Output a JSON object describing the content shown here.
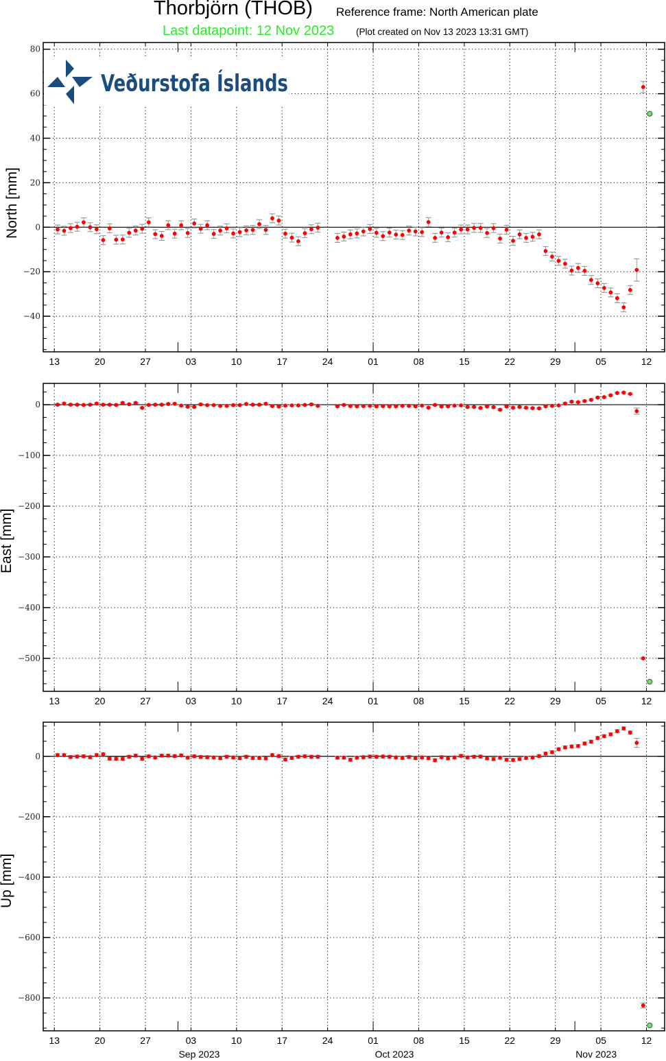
{
  "header": {
    "title": "Thorbjörn (THOB)",
    "reference_frame": "Reference frame: North American plate",
    "last_datapoint": "Last datapoint: 12 Nov 2023",
    "plot_created": "(Plot created on Nov 13 2023 13:31 GMT)"
  },
  "logo": {
    "text": "Veðurstofa Íslands",
    "color": "#1b4c7f"
  },
  "colors": {
    "point": "#ff0000",
    "errorbar": "#9a9a9a",
    "last_point": "#7dd87d",
    "last_point_edge": "#2a6a2a",
    "latest_label": "#22f022"
  },
  "chart_data": [
    {
      "type": "scatter",
      "panel": "north",
      "ylabel": "North [mm]",
      "ylim": [
        -56,
        83
      ],
      "yticks": [
        -40,
        -20,
        0,
        20,
        40,
        60,
        80
      ],
      "ytick_labels": [
        "−40",
        "−20",
        "0",
        "20",
        "40",
        "60",
        "80"
      ],
      "minor_ytick_step": 5,
      "grid": true,
      "values": [
        -1.0,
        -1.6,
        -0.4,
        0.2,
        2.2,
        0.0,
        -0.9,
        -5.8,
        -0.5,
        -5.6,
        -5.5,
        -2.5,
        -1.5,
        -0.7,
        2.2,
        -3.1,
        -3.9,
        0.9,
        -2.9,
        0.9,
        -2.6,
        1.7,
        -0.7,
        0.9,
        -3.0,
        -1.5,
        -0.5,
        -2.8,
        -2.2,
        -1.4,
        -1.2,
        1.4,
        -1.2,
        4.0,
        3.0,
        -2.9,
        -4.7,
        -6.3,
        -2.7,
        -0.9,
        -0.2,
        null,
        null,
        -4.8,
        -4.2,
        -3.2,
        -2.8,
        -1.9,
        -0.8,
        -2.5,
        -4.0,
        -2.4,
        -3.3,
        -3.5,
        -1.5,
        -1.9,
        -2.2,
        2.3,
        -4.8,
        -2.4,
        -4.5,
        -2.4,
        -1.0,
        -1.0,
        -0.3,
        -0.3,
        -2.6,
        -0.4,
        -5.1,
        -1.1,
        -6.1,
        -3.2,
        -4.8,
        -4.3,
        -3.2,
        -10.7,
        -13.2,
        -15.1,
        -16.4,
        -19.5,
        -18.3,
        -19.6,
        -23.7,
        -25.2,
        -27.3,
        -29.3,
        -31.9,
        -36.0,
        -28.2,
        -19.2,
        63.0
      ],
      "error_default": 2,
      "error_overrides": {
        "2023-11-10": 5,
        "2023-11-11": 2.5
      },
      "last_point": {
        "date": "2023-11-12",
        "value": 51
      }
    },
    {
      "type": "scatter",
      "panel": "east",
      "ylabel": "East [mm]",
      "ylim": [
        -565,
        42
      ],
      "yticks": [
        -500,
        -400,
        -300,
        -200,
        -100,
        0
      ],
      "ytick_labels": [
        "−500",
        "−400",
        "−300",
        "−200",
        "−100",
        "0"
      ],
      "minor_ytick_step": 25,
      "grid": true,
      "values": [
        0.0,
        2.3,
        0.0,
        0.0,
        -0.5,
        0.0,
        2.3,
        0.0,
        0.0,
        -0.5,
        3.6,
        0.9,
        3.6,
        -6.3,
        -0.5,
        0.0,
        0.0,
        1.4,
        1.8,
        -1.8,
        -4.1,
        -4.5,
        0.5,
        -0.9,
        -0.9,
        -2.3,
        -2.3,
        -0.9,
        -0.9,
        1.4,
        0.0,
        0.0,
        1.8,
        -2.7,
        -3.6,
        -1.8,
        -1.4,
        -1.4,
        -0.5,
        0.5,
        -2.3,
        null,
        null,
        -3.2,
        -0.5,
        -2.7,
        -3.2,
        -2.7,
        -2.3,
        -3.2,
        -2.7,
        -3.2,
        -3.2,
        -2.3,
        -2.3,
        -3.2,
        -1.8,
        -5.9,
        -0.5,
        -3.6,
        -3.2,
        -1.8,
        -1.4,
        -4.5,
        -4.5,
        -6.3,
        -3.6,
        -5.0,
        -9.9,
        -3.6,
        -5.9,
        -4.5,
        -5.9,
        -6.8,
        -7.2,
        -3.2,
        -2.3,
        -1.4,
        2.3,
        5.9,
        5.0,
        7.2,
        9.5,
        14.0,
        14.9,
        18.5,
        23.0,
        23.9,
        21.2,
        -12.6,
        -500
      ],
      "error_default": 1.5,
      "error_overrides": {
        "2023-11-10": 6,
        "2023-11-11": 2
      },
      "last_point": {
        "date": "2023-11-12",
        "value": -546
      }
    },
    {
      "type": "scatter",
      "panel": "up",
      "ylabel": "Up [mm]",
      "ylim": [
        -909,
        113
      ],
      "yticks": [
        -800,
        -600,
        -400,
        -200,
        0
      ],
      "ytick_labels": [
        "−800",
        "−600",
        "−400",
        "−200",
        "0"
      ],
      "minor_ytick_step": 50,
      "grid": true,
      "values": [
        3.8,
        3.8,
        -2.3,
        -0.8,
        0.0,
        -3.0,
        3.8,
        6.8,
        -7.6,
        -8.3,
        -8.3,
        -1.5,
        2.3,
        -8.3,
        0.0,
        -3.8,
        2.3,
        2.3,
        0.8,
        3.0,
        -4.5,
        0.0,
        -2.3,
        -3.0,
        -3.8,
        -6.1,
        -1.5,
        -3.8,
        -6.1,
        -1.5,
        -5.3,
        -5.3,
        -6.8,
        3.8,
        0.8,
        -10.6,
        -5.3,
        -1.5,
        0.0,
        -1.5,
        -1.5,
        null,
        null,
        -4.5,
        -4.5,
        -11.4,
        -4.5,
        -3.0,
        -0.8,
        -1.5,
        -0.8,
        -1.5,
        -3.8,
        -5.3,
        -2.3,
        -6.1,
        -3.8,
        -6.1,
        -12.9,
        -3.0,
        -6.8,
        -3.8,
        1.5,
        -3.8,
        -1.5,
        -0.8,
        -6.8,
        -9.1,
        -4.5,
        -11.4,
        -12.1,
        -9.1,
        -5.3,
        -3.8,
        0.8,
        9.1,
        13.6,
        23.5,
        29.5,
        32.6,
        34.1,
        42.4,
        48.5,
        60.6,
        66.7,
        72.7,
        83.3,
        92.4,
        78.8,
        44.7,
        -825
      ],
      "error_default": 5,
      "error_overrides": {
        "2023-11-10": 15,
        "2023-11-11": 8
      },
      "last_point": {
        "date": "2023-11-12",
        "value": -891
      }
    }
  ],
  "x_axis": {
    "xlim": [
      "2023-08-11T07:00",
      "2023-11-14T19:00"
    ],
    "dates": [
      "2023-08-13",
      "2023-08-14",
      "2023-08-15",
      "2023-08-16",
      "2023-08-17",
      "2023-08-18",
      "2023-08-19",
      "2023-08-20",
      "2023-08-21",
      "2023-08-22",
      "2023-08-23",
      "2023-08-24",
      "2023-08-25",
      "2023-08-26",
      "2023-08-27",
      "2023-08-28",
      "2023-08-29",
      "2023-08-30",
      "2023-08-31",
      "2023-09-01",
      "2023-09-02",
      "2023-09-03",
      "2023-09-04",
      "2023-09-05",
      "2023-09-06",
      "2023-09-07",
      "2023-09-08",
      "2023-09-09",
      "2023-09-10",
      "2023-09-11",
      "2023-09-12",
      "2023-09-13",
      "2023-09-14",
      "2023-09-15",
      "2023-09-16",
      "2023-09-17",
      "2023-09-18",
      "2023-09-19",
      "2023-09-20",
      "2023-09-21",
      "2023-09-22",
      "2023-09-23",
      "2023-09-24",
      "2023-09-25",
      "2023-09-26",
      "2023-09-27",
      "2023-09-28",
      "2023-09-29",
      "2023-09-30",
      "2023-10-01",
      "2023-10-02",
      "2023-10-03",
      "2023-10-04",
      "2023-10-05",
      "2023-10-06",
      "2023-10-07",
      "2023-10-08",
      "2023-10-09",
      "2023-10-10",
      "2023-10-11",
      "2023-10-12",
      "2023-10-13",
      "2023-10-14",
      "2023-10-15",
      "2023-10-16",
      "2023-10-17",
      "2023-10-18",
      "2023-10-19",
      "2023-10-20",
      "2023-10-21",
      "2023-10-22",
      "2023-10-23",
      "2023-10-24",
      "2023-10-25",
      "2023-10-26",
      "2023-10-27",
      "2023-10-28",
      "2023-10-29",
      "2023-10-30",
      "2023-10-31",
      "2023-11-01",
      "2023-11-02",
      "2023-11-03",
      "2023-11-04",
      "2023-11-05",
      "2023-11-06",
      "2023-11-07",
      "2023-11-08",
      "2023-11-09",
      "2023-11-10",
      "2023-11-11"
    ],
    "tick_dates": [
      "2023-08-13",
      "2023-08-20",
      "2023-08-27",
      "2023-09-03",
      "2023-09-10",
      "2023-09-17",
      "2023-09-24",
      "2023-10-01",
      "2023-10-08",
      "2023-10-15",
      "2023-10-22",
      "2023-10-29",
      "2023-11-05",
      "2023-11-12"
    ],
    "tick_labels": [
      "13",
      "20",
      "27",
      "03",
      "10",
      "17",
      "24",
      "01",
      "08",
      "15",
      "22",
      "29",
      "05",
      "12"
    ],
    "month_dates": [
      "2023-09-01",
      "2023-10-01",
      "2023-11-01"
    ],
    "month_labels": [
      "Sep 2023",
      "Oct 2023",
      "Nov 2023"
    ]
  }
}
